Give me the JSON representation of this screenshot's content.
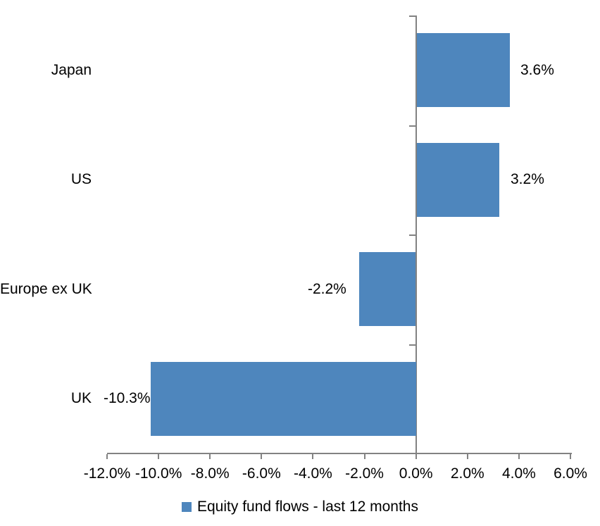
{
  "chart_data": {
    "type": "bar",
    "orientation": "horizontal",
    "title": "",
    "xlabel": "",
    "ylabel": "",
    "categories": [
      "Japan",
      "US",
      "Europe ex UK",
      "UK"
    ],
    "series": [
      {
        "name": "Equity fund flows - last 12 months",
        "values": [
          3.6,
          3.2,
          -2.2,
          -10.3
        ],
        "data_labels": [
          "3.6%",
          "3.2%",
          "-2.2%",
          "-10.3%"
        ]
      }
    ],
    "xlim": [
      -12,
      6
    ],
    "x_tick_step": 2,
    "x_tick_values": [
      -12,
      -10,
      -8,
      -6,
      -4,
      -2,
      0,
      2,
      4,
      6
    ],
    "x_tick_labels": [
      "-12.0%",
      "-10.0%",
      "-8.0%",
      "-6.0%",
      "-4.0%",
      "-2.0%",
      "0.0%",
      "2.0%",
      "4.0%",
      "6.0%"
    ],
    "grid": false,
    "legend_position": "bottom",
    "colors": {
      "bar": "#4E86BD",
      "axis": "#828282",
      "text": "#000000",
      "background": "#ffffff"
    }
  },
  "legend": {
    "label": "Equity fund flows - last 12 months"
  }
}
